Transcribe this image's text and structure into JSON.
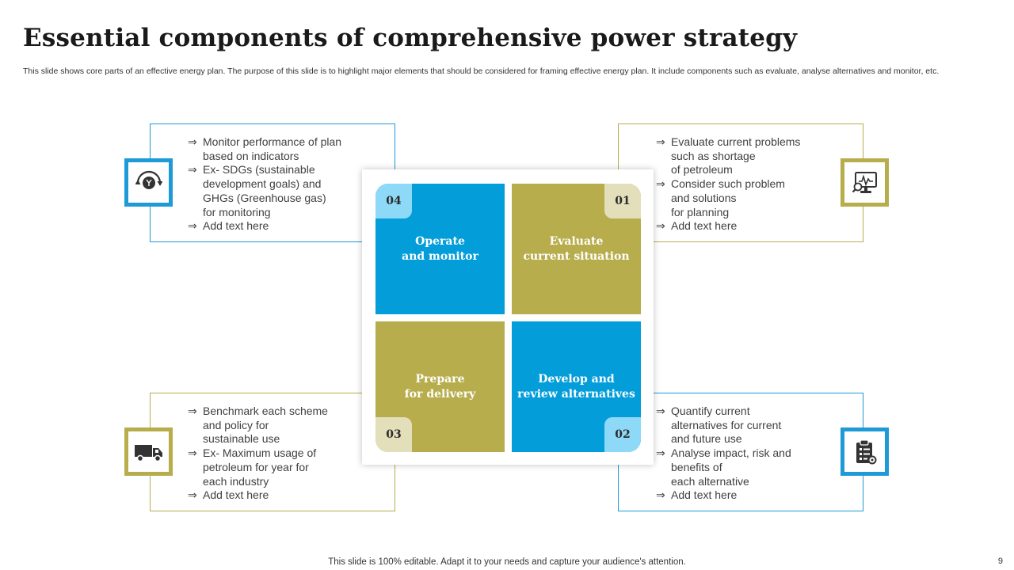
{
  "slide": {
    "title": "Essential components of comprehensive power strategy",
    "subtitle": "This slide shows core parts of an effective energy plan. The purpose of this slide is to highlight major elements that should be considered for framing effective energy plan. It include components such as evaluate, analyse alternatives and monitor, etc.",
    "footer": "This slide is 100% editable. Adapt it to your needs and capture your audience's attention.",
    "page_number": "9"
  },
  "boxes": {
    "top_left": {
      "icon": "monitor-cycle-icon",
      "bullets": [
        "Monitor performance of plan\nbased on indicators",
        "Ex- SDGs (sustainable\ndevelopment goals) and\nGHGs (Greenhouse gas)\n for monitoring",
        "Add text here"
      ]
    },
    "top_right": {
      "icon": "computer-analysis-icon",
      "bullets": [
        "Evaluate current problems\nsuch as shortage\nof petroleum",
        "Consider such problem\nand solutions\nfor planning",
        "Add text here"
      ]
    },
    "bottom_left": {
      "icon": "delivery-truck-icon",
      "bullets": [
        "Benchmark each scheme\nand policy for\nsustainable use",
        "Ex- Maximum usage of\npetroleum for year for\neach industry",
        "Add text here"
      ]
    },
    "bottom_right": {
      "icon": "clipboard-checklist-icon",
      "bullets": [
        "Quantify current\nalternatives for current\nand future use",
        "Analyse impact, risk and\nbenefits of\neach alternative",
        "Add text here"
      ]
    }
  },
  "tiles": {
    "t04": {
      "number": "04",
      "label": "Operate\nand monitor"
    },
    "t01": {
      "number": "01",
      "label": "Evaluate\ncurrent situation"
    },
    "t03": {
      "number": "03",
      "label": "Prepare\nfor delivery"
    },
    "t02": {
      "number": "02",
      "label": "Develop and\nreview alternatives"
    }
  },
  "colors": {
    "blue": "#039dda",
    "olive": "#b8ad4d",
    "light_blue": "#8ed9f8",
    "light_olive": "#e3dfba"
  }
}
